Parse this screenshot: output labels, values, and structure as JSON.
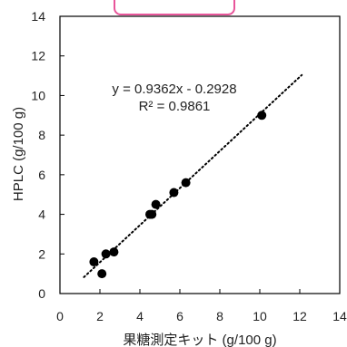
{
  "chart_data": {
    "type": "scatter",
    "title": "",
    "xlabel": "果糖測定キット (g/100 g)",
    "ylabel": "HPLC (g/100 g)",
    "xlim": [
      0,
      14
    ],
    "ylim": [
      0,
      14
    ],
    "xticks": [
      0,
      2,
      4,
      6,
      8,
      10,
      12,
      14
    ],
    "yticks": [
      0,
      2,
      4,
      6,
      8,
      10,
      12,
      14
    ],
    "grid": false,
    "marker_color": "#000000",
    "trendline": {
      "style": "dotted",
      "slope": 0.9362,
      "intercept": -0.2928,
      "x_range": [
        1.2,
        12.1
      ]
    },
    "annotations": {
      "equation": "y = 0.9362x - 0.2928",
      "r_squared": "R² = 0.9861"
    },
    "points": [
      {
        "x": 1.7,
        "y": 1.6
      },
      {
        "x": 2.1,
        "y": 1.0
      },
      {
        "x": 2.3,
        "y": 2.0
      },
      {
        "x": 2.7,
        "y": 2.1
      },
      {
        "x": 4.5,
        "y": 4.0
      },
      {
        "x": 4.6,
        "y": 4.0
      },
      {
        "x": 4.8,
        "y": 4.5
      },
      {
        "x": 5.7,
        "y": 5.1
      },
      {
        "x": 6.3,
        "y": 5.6
      },
      {
        "x": 10.1,
        "y": 9.0
      }
    ]
  }
}
